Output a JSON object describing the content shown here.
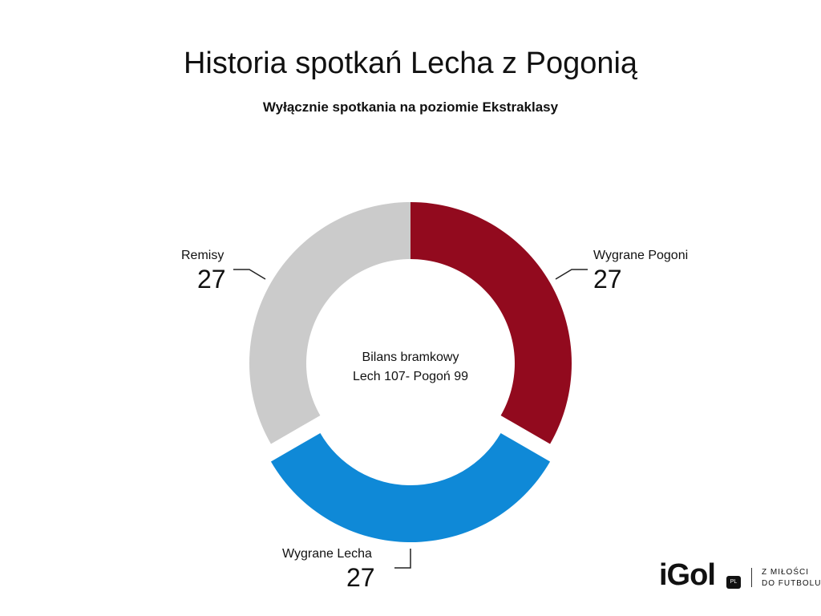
{
  "chart_data": {
    "type": "pie",
    "title": "Historia spotkań Lecha z Pogonią",
    "subtitle": "Wyłącznie spotkania na poziomie Ekstraklasy",
    "donut": true,
    "slices": [
      {
        "label": "Wygrane Pogoni",
        "value": 27,
        "color": "#920A1E",
        "exploded": false
      },
      {
        "label": "Wygrane Lecha",
        "value": 27,
        "color": "#0F89D7",
        "exploded": true
      },
      {
        "label": "Remisy",
        "value": 27,
        "color": "#CBCBCB",
        "exploded": false
      }
    ],
    "center_text": [
      "Bilans bramkowy",
      "Lech 107- Pogoń 99"
    ]
  },
  "logo": {
    "brand": "iGol",
    "suffix": "PL",
    "tagline": [
      "Z MIŁOŚCI",
      "DO FUTBOLU"
    ]
  }
}
